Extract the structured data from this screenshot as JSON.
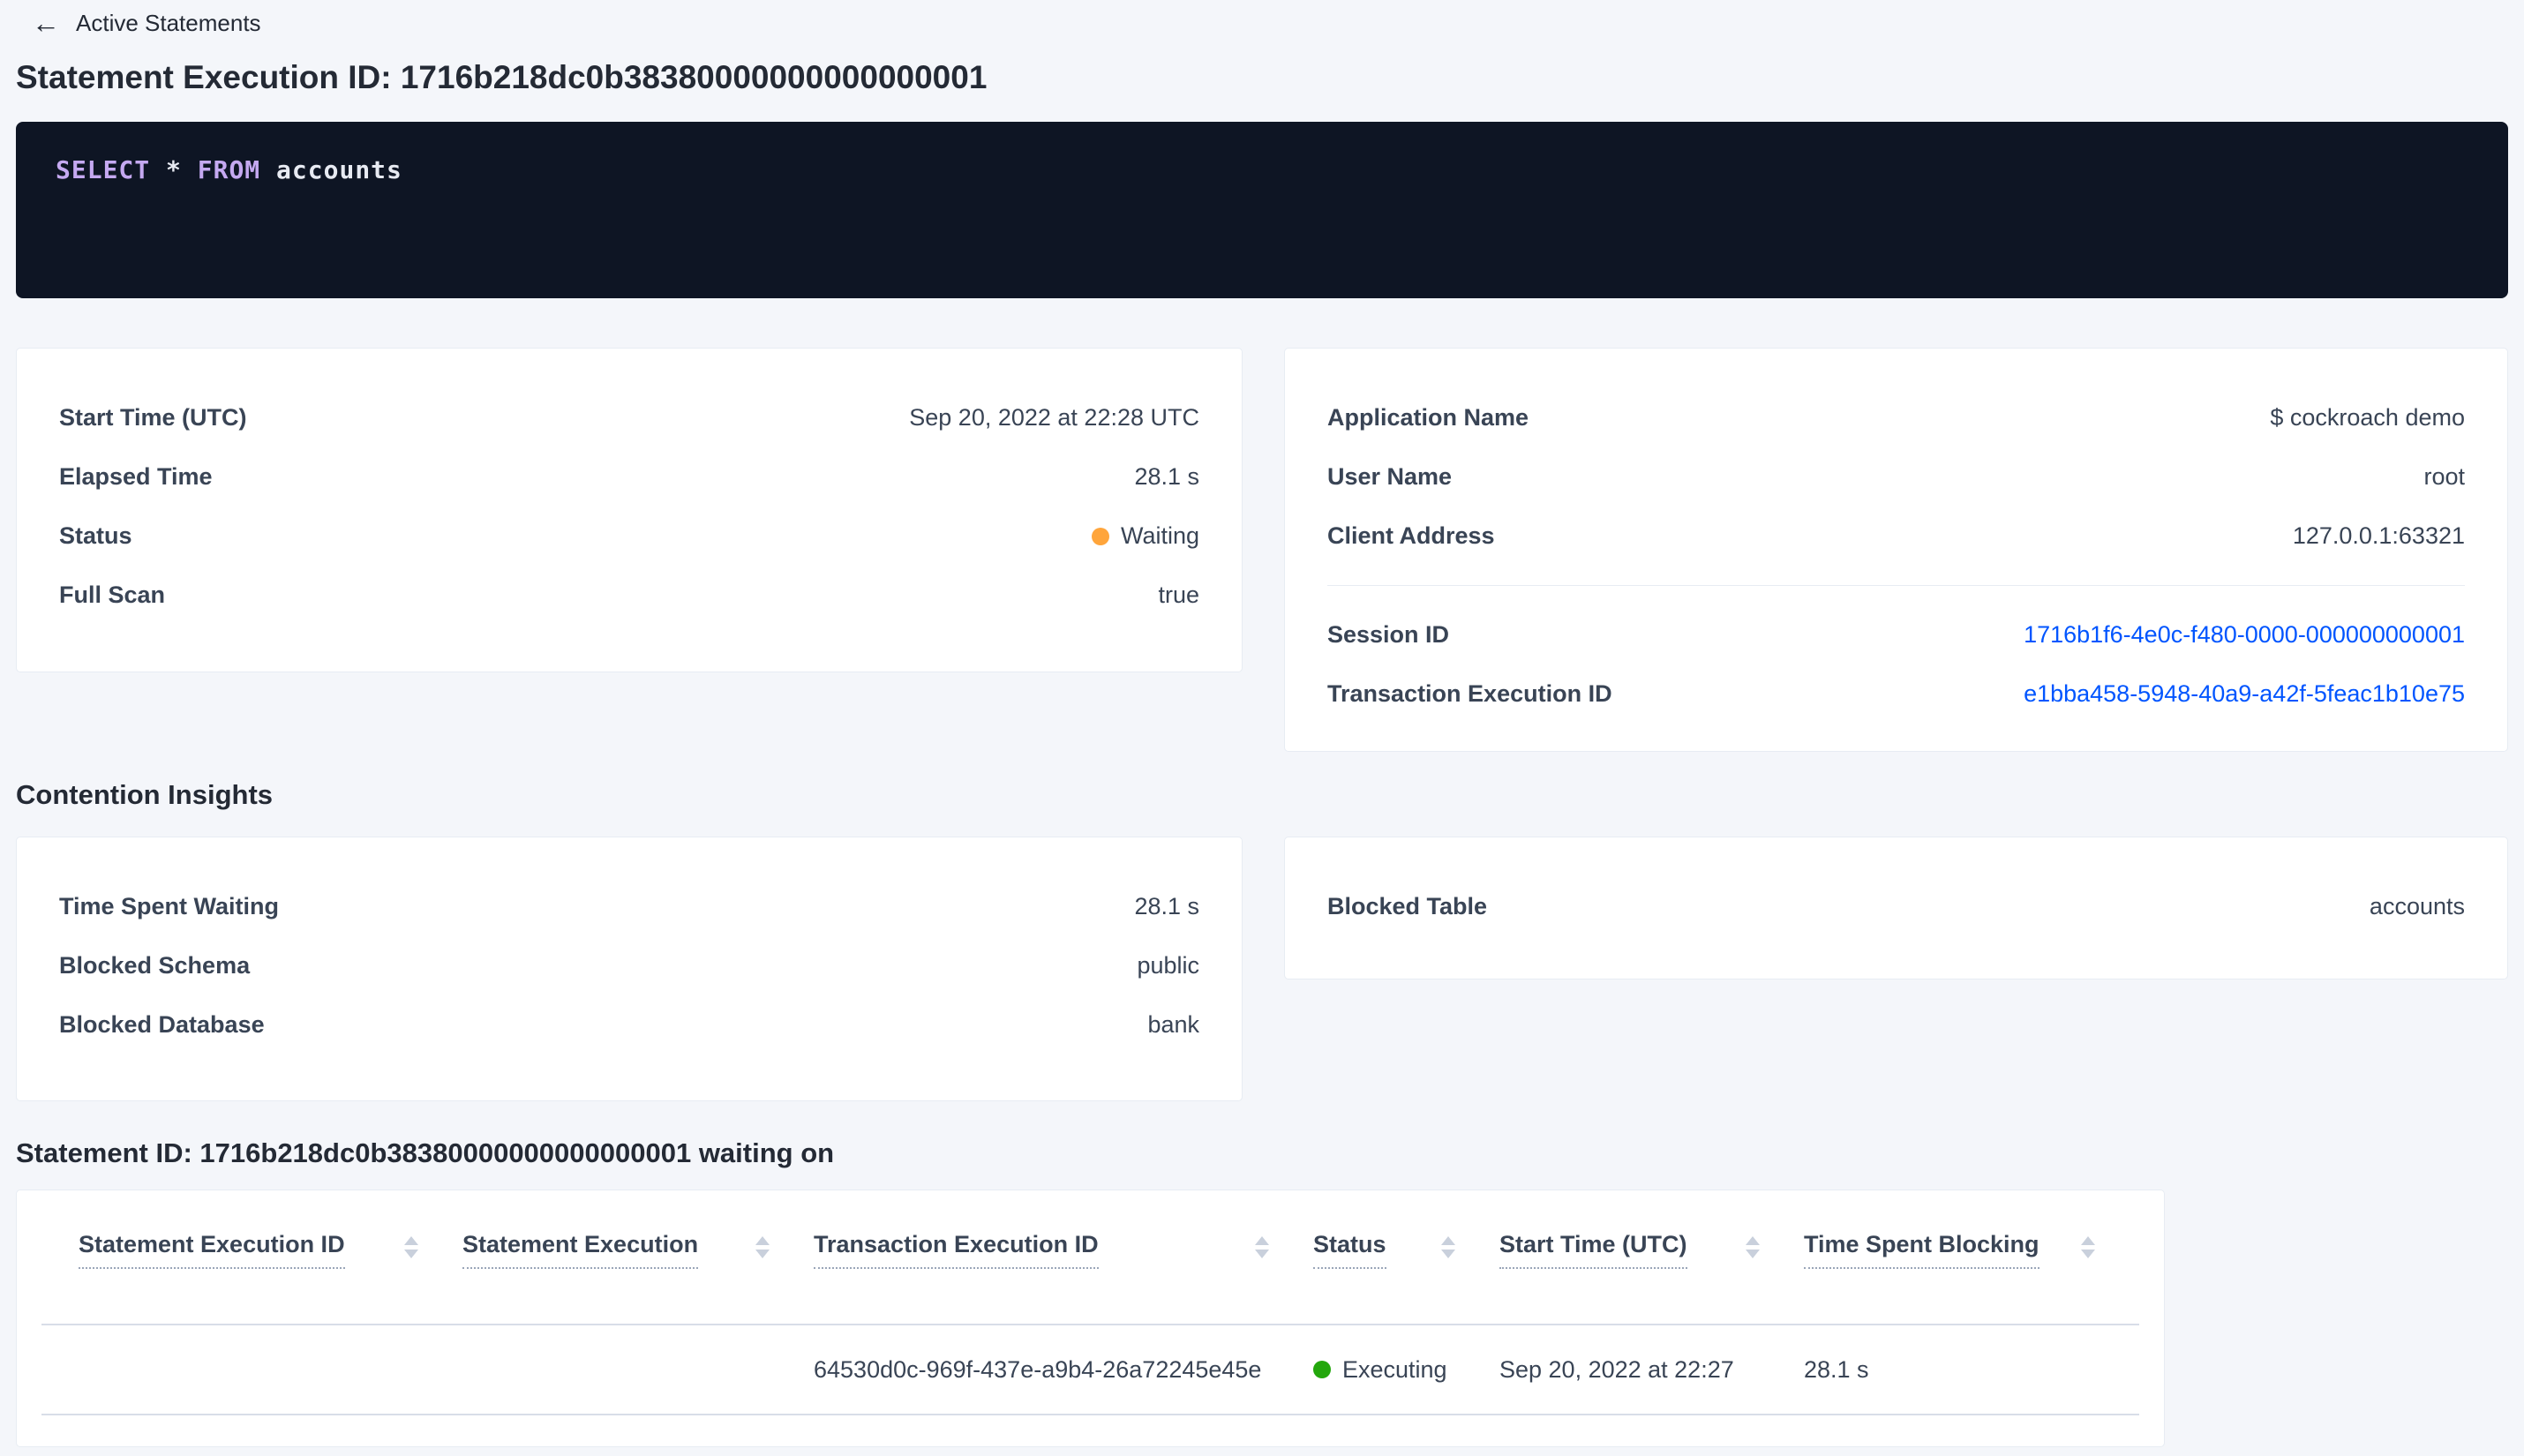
{
  "header": {
    "back_label": "Active Statements",
    "title": "Statement Execution ID: 1716b218dc0b38380000000000000001"
  },
  "sql_box": {
    "kw_select": "SELECT",
    "star": "*",
    "kw_from": "FROM",
    "table_name": "accounts"
  },
  "summary_card": {
    "start_time_label": "Start Time (UTC)",
    "start_time_value": "Sep 20, 2022 at 22:28 UTC",
    "elapsed_label": "Elapsed Time",
    "elapsed_value": "28.1 s",
    "status_label": "Status",
    "status_value": "Waiting",
    "full_scan_label": "Full Scan",
    "full_scan_value": "true"
  },
  "session_card": {
    "app_name_label": "Application Name",
    "app_name_value": "$ cockroach demo",
    "user_name_label": "User Name",
    "user_name_value": "root",
    "client_address_label": "Client Address",
    "client_address_value": "127.0.0.1:63321",
    "session_id_label": "Session ID",
    "session_id_value": "1716b1f6-4e0c-f480-0000-000000000001",
    "txn_id_label": "Transaction Execution ID",
    "txn_id_value": "e1bba458-5948-40a9-a42f-5feac1b10e75"
  },
  "contention": {
    "heading": "Contention Insights",
    "time_waiting_label": "Time Spent Waiting",
    "time_waiting_value": "28.1 s",
    "blocked_schema_label": "Blocked Schema",
    "blocked_schema_value": "public",
    "blocked_database_label": "Blocked Database",
    "blocked_database_value": "bank",
    "blocked_table_label": "Blocked Table",
    "blocked_table_value": "accounts"
  },
  "waiting_on": {
    "heading": "Statement ID: 1716b218dc0b38380000000000000001 waiting on",
    "columns": [
      "Statement Execution ID",
      "Statement Execution",
      "Transaction Execution ID",
      "Status",
      "Start Time (UTC)",
      "Time Spent Blocking"
    ],
    "row": {
      "statement_execution_id": "",
      "statement_execution": "",
      "transaction_execution_id": "64530d0c-969f-437e-a9b4-26a72245e45e",
      "status": "Executing",
      "start_time": "Sep 20, 2022 at 22:27",
      "time_spent_blocking": "28.1 s"
    }
  },
  "colors": {
    "link_blue": "#0055ff",
    "status_waiting_dot": "#ffa53b",
    "status_executing_dot": "#23a70c",
    "sql_keyword": "#c5a9f1",
    "code_background": "#0e1524",
    "page_background": "#f4f6fa"
  }
}
